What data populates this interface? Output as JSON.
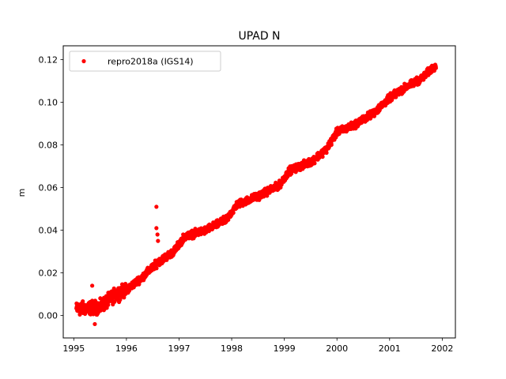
{
  "chart_data": {
    "type": "scatter",
    "title": "UPAD N",
    "xlabel": "",
    "ylabel": "m",
    "xlim": [
      1994.8,
      2002.25
    ],
    "ylim": [
      -0.0105,
      0.1265
    ],
    "xticks": [
      1995,
      1996,
      1997,
      1998,
      1999,
      2000,
      2001,
      2002
    ],
    "xtick_labels": [
      "1995",
      "1996",
      "1997",
      "1998",
      "1999",
      "2000",
      "2001",
      "2002"
    ],
    "yticks": [
      0.0,
      0.02,
      0.04,
      0.06,
      0.08,
      0.1,
      0.12
    ],
    "ytick_labels": [
      "0.00",
      "0.02",
      "0.04",
      "0.06",
      "0.08",
      "0.10",
      "0.12"
    ],
    "grid": false,
    "legend": {
      "placement": "top-left"
    },
    "series": [
      {
        "name": "repro2018a (IGS14)",
        "color": "#ff0000",
        "marker": "circle",
        "trend": {
          "x": [
            1995.0,
            1995.5,
            1995.8,
            1996.0,
            1996.3,
            1996.6,
            1996.9,
            1997.1,
            1997.5,
            1997.9,
            1998.1,
            1998.5,
            1998.9,
            1999.1,
            1999.5,
            1999.8,
            2000.0,
            2000.3,
            2000.7,
            2001.0,
            2001.3,
            2001.6,
            2001.9
          ],
          "y": [
            0.003,
            0.004,
            0.01,
            0.012,
            0.018,
            0.025,
            0.03,
            0.037,
            0.04,
            0.045,
            0.052,
            0.056,
            0.061,
            0.068,
            0.072,
            0.078,
            0.086,
            0.089,
            0.095,
            0.102,
            0.107,
            0.111,
            0.118
          ]
        },
        "x_range": [
          1995.05,
          2001.88
        ],
        "scatter_spread": 0.0025,
        "outliers": [
          {
            "x": 1995.35,
            "y": 0.014
          },
          {
            "x": 1995.4,
            "y": -0.004
          },
          {
            "x": 1996.57,
            "y": 0.051
          },
          {
            "x": 1996.57,
            "y": 0.041
          },
          {
            "x": 1996.59,
            "y": 0.038
          },
          {
            "x": 1996.6,
            "y": 0.035
          }
        ]
      }
    ]
  }
}
